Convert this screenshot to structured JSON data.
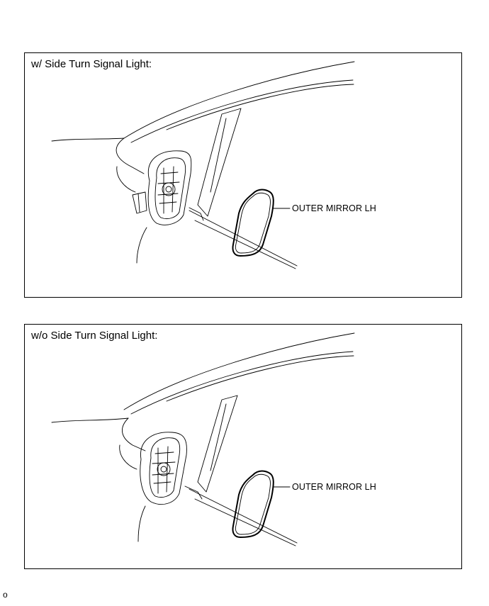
{
  "panels": [
    {
      "title": "w/ Side Turn Signal Light:",
      "callout": "OUTER MIRROR LH"
    },
    {
      "title": "w/o Side Turn Signal Light:",
      "callout": "OUTER MIRROR LH"
    }
  ],
  "footer_mark": "o"
}
